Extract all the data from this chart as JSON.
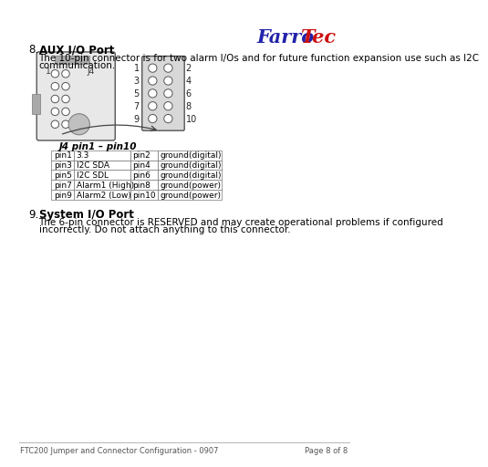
{
  "table_title": "J4 pin1 – pin10",
  "table_data": [
    [
      "pin1",
      "3.3",
      "pin2",
      "ground(digital)"
    ],
    [
      "pin3",
      "I2C SDA",
      "pin4",
      "ground(digital)"
    ],
    [
      "pin5",
      "I2C SDL",
      "pin6",
      "ground(digital)"
    ],
    [
      "pin7",
      "Alarm1 (High)",
      "pin8",
      "ground(power)"
    ],
    [
      "pin9",
      "Alarm2 (Low)",
      "pin10",
      "ground(power)"
    ]
  ],
  "footer_left": "FTC200 Jumper and Connector Configuration - 0907",
  "footer_right": "Page 8 of 8",
  "bg_color": "#ffffff",
  "text_color": "#000000",
  "logo_farro_color": "#2222aa",
  "logo_tec_color": "#cc1111",
  "section8_num": "8.",
  "section8_title": "AUX I/O Port",
  "section8_body1": "The 10-pin connector is for two alarm I/Os and for future function expansion use such as I2C",
  "section8_body2": "communication.",
  "section9_num": "9.",
  "section9_title": "System I/O Port",
  "section9_body1": "The 6-pin connector is RESERVED and may create operational problems if configured",
  "section9_body2": "incorrectly. Do not attach anything to this connector.",
  "pin_labels_left": [
    "1",
    "3",
    "5",
    "7",
    "9"
  ],
  "pin_labels_right": [
    "2",
    "4",
    "6",
    "8",
    "10"
  ]
}
